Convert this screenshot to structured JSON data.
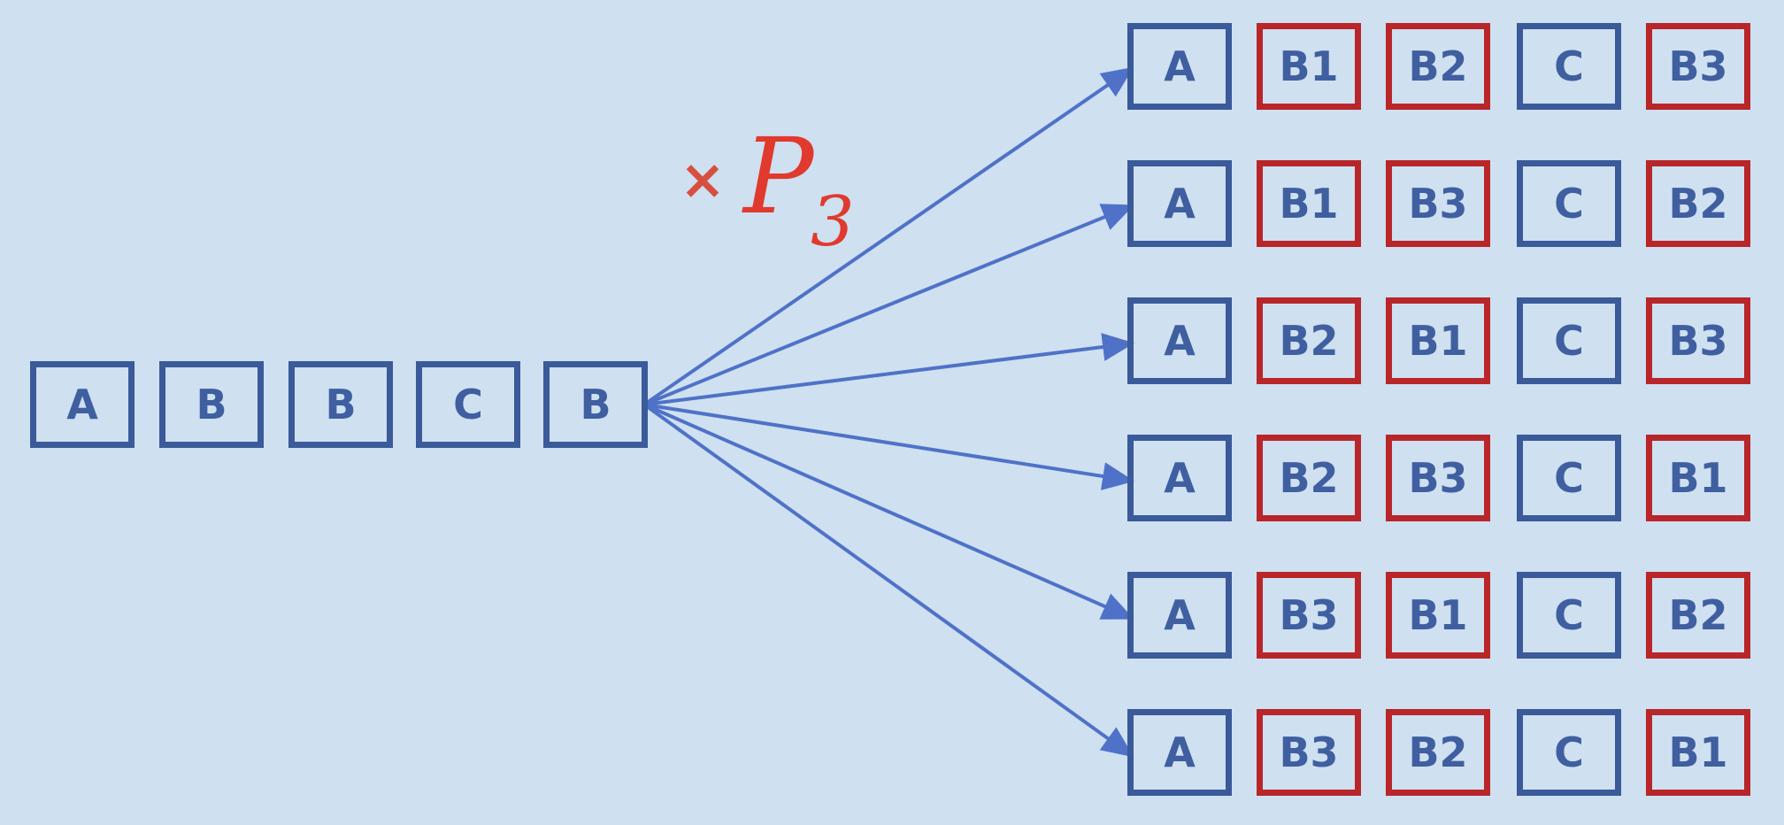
{
  "source": {
    "items": [
      "A",
      "B",
      "B",
      "C",
      "B"
    ]
  },
  "multiplier": {
    "symbol": "×",
    "letter": "P",
    "subscript": "3"
  },
  "results": [
    [
      {
        "t": "A",
        "c": "blue"
      },
      {
        "t": "B1",
        "c": "red"
      },
      {
        "t": "B2",
        "c": "red"
      },
      {
        "t": "C",
        "c": "blue"
      },
      {
        "t": "B3",
        "c": "red"
      }
    ],
    [
      {
        "t": "A",
        "c": "blue"
      },
      {
        "t": "B1",
        "c": "red"
      },
      {
        "t": "B3",
        "c": "red"
      },
      {
        "t": "C",
        "c": "blue"
      },
      {
        "t": "B2",
        "c": "red"
      }
    ],
    [
      {
        "t": "A",
        "c": "blue"
      },
      {
        "t": "B2",
        "c": "red"
      },
      {
        "t": "B1",
        "c": "red"
      },
      {
        "t": "C",
        "c": "blue"
      },
      {
        "t": "B3",
        "c": "red"
      }
    ],
    [
      {
        "t": "A",
        "c": "blue"
      },
      {
        "t": "B2",
        "c": "red"
      },
      {
        "t": "B3",
        "c": "red"
      },
      {
        "t": "C",
        "c": "blue"
      },
      {
        "t": "B1",
        "c": "red"
      }
    ],
    [
      {
        "t": "A",
        "c": "blue"
      },
      {
        "t": "B3",
        "c": "red"
      },
      {
        "t": "B1",
        "c": "red"
      },
      {
        "t": "C",
        "c": "blue"
      },
      {
        "t": "B2",
        "c": "red"
      }
    ],
    [
      {
        "t": "A",
        "c": "blue"
      },
      {
        "t": "B3",
        "c": "red"
      },
      {
        "t": "B2",
        "c": "red"
      },
      {
        "t": "C",
        "c": "blue"
      },
      {
        "t": "B1",
        "c": "red"
      }
    ]
  ],
  "colors": {
    "background": "#cfe0f0",
    "box_blue": "#3a5a9a",
    "box_red": "#b8262a",
    "arrow": "#4f72c8",
    "label": "#e03a2e"
  }
}
